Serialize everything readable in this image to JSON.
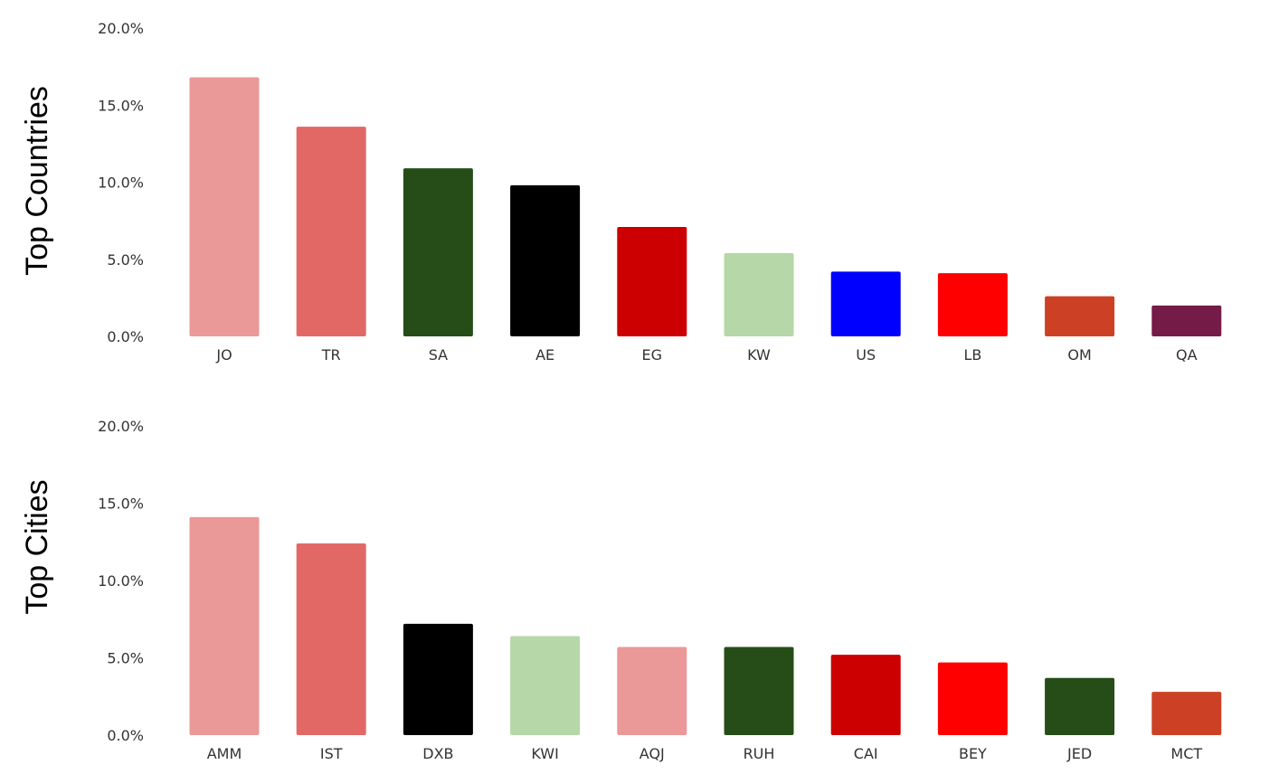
{
  "chart_data": [
    {
      "type": "bar",
      "ylabel": "Top Countries",
      "ylim": [
        0,
        20
      ],
      "yticks": [
        "0.0%",
        "5.0%",
        "10.0%",
        "15.0%",
        "20.0%"
      ],
      "categories": [
        "JO",
        "TR",
        "SA",
        "AE",
        "EG",
        "KW",
        "US",
        "LB",
        "OM",
        "QA"
      ],
      "values": [
        16.8,
        13.6,
        10.9,
        9.8,
        7.1,
        5.4,
        4.2,
        4.1,
        2.6,
        2.0
      ],
      "colors": [
        "#eb9898",
        "#e26866",
        "#264d18",
        "#000000",
        "#cc0000",
        "#b6d7a8",
        "#0000ff",
        "#ff0000",
        "#cc4125",
        "#741b47"
      ],
      "grid": false,
      "legend": "none"
    },
    {
      "type": "bar",
      "ylabel": "Top Cities",
      "ylim": [
        0,
        20
      ],
      "yticks": [
        "0.0%",
        "5.0%",
        "10.0%",
        "15.0%",
        "20.0%"
      ],
      "categories": [
        "AMM",
        "IST",
        "DXB",
        "KWI",
        "AQJ",
        "RUH",
        "CAI",
        "BEY",
        "JED",
        "MCT"
      ],
      "values": [
        14.1,
        12.4,
        7.2,
        6.4,
        5.7,
        5.7,
        5.2,
        4.7,
        3.7,
        2.8
      ],
      "colors": [
        "#eb9898",
        "#e26866",
        "#000000",
        "#b6d7a8",
        "#eb9898",
        "#264d18",
        "#cc0000",
        "#ff0000",
        "#264d18",
        "#cc4125"
      ],
      "grid": false,
      "legend": "none"
    }
  ]
}
